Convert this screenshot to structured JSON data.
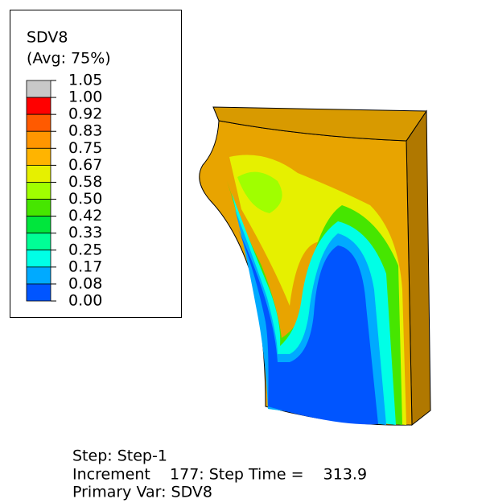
{
  "legend": {
    "title": "SDV8",
    "subtitle": "(Avg: 75%)",
    "labels": [
      "1.05",
      "1.00",
      "0.92",
      "0.83",
      "0.75",
      "0.67",
      "0.58",
      "0.50",
      "0.42",
      "0.33",
      "0.25",
      "0.17",
      "0.08",
      "0.00"
    ],
    "colors": [
      "#c8c8c8",
      "#ff0000",
      "#ff5a00",
      "#ff9600",
      "#ffb400",
      "#e6f000",
      "#a0ff00",
      "#46e600",
      "#00e63c",
      "#00ff96",
      "#00ffe6",
      "#00aaff",
      "#0055ff",
      "#0000ff"
    ]
  },
  "footer": {
    "step": "Step: Step-1",
    "increment": "Increment    177: Step Time =    313.9",
    "primary_var": "Primary Var: SDV8"
  }
}
